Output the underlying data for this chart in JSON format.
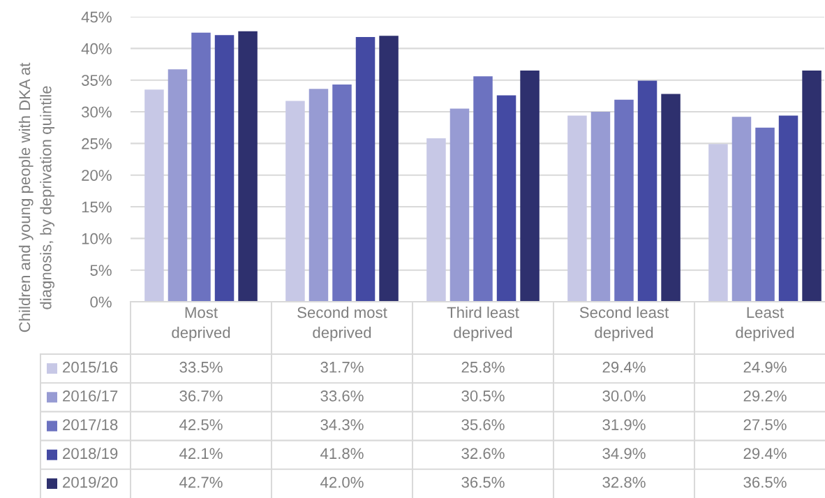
{
  "chart_data": {
    "type": "bar",
    "ylabel": "Children and young people with DKA at\ndiagnosis, by deprivation quintile",
    "categories": [
      "Most\ndeprived",
      "Second most\ndeprived",
      "Third least\ndeprived",
      "Second least\ndeprived",
      "Least\ndeprived"
    ],
    "series": [
      {
        "name": "2015/16",
        "color": "#c7c8e6",
        "values": [
          33.5,
          31.7,
          25.8,
          29.4,
          24.9
        ],
        "value_labels": [
          "33.5%",
          "31.7%",
          "25.8%",
          "29.4%",
          "24.9%"
        ]
      },
      {
        "name": "2016/17",
        "color": "#979bd3",
        "values": [
          36.7,
          33.6,
          30.5,
          30.0,
          29.2
        ],
        "value_labels": [
          "36.7%",
          "33.6%",
          "30.5%",
          "30.0%",
          "29.2%"
        ]
      },
      {
        "name": "2017/18",
        "color": "#6c72c0",
        "values": [
          42.5,
          34.3,
          35.6,
          31.9,
          27.5
        ],
        "value_labels": [
          "42.5%",
          "34.3%",
          "35.6%",
          "31.9%",
          "27.5%"
        ]
      },
      {
        "name": "2018/19",
        "color": "#444aa3",
        "values": [
          42.1,
          41.8,
          32.6,
          34.9,
          29.4
        ],
        "value_labels": [
          "42.1%",
          "41.8%",
          "32.6%",
          "34.9%",
          "29.4%"
        ]
      },
      {
        "name": "2019/20",
        "color": "#2e306e",
        "values": [
          42.7,
          42.0,
          36.5,
          32.8,
          36.5
        ],
        "value_labels": [
          "42.7%",
          "42.0%",
          "36.5%",
          "32.8%",
          "36.5%"
        ]
      }
    ],
    "ylim": [
      0,
      45
    ],
    "yticks": [
      {
        "value": 0,
        "label": "0%"
      },
      {
        "value": 5,
        "label": "5%"
      },
      {
        "value": 10,
        "label": "10%"
      },
      {
        "value": 15,
        "label": "15%"
      },
      {
        "value": 20,
        "label": "20%"
      },
      {
        "value": 25,
        "label": "25%"
      },
      {
        "value": 30,
        "label": "30%"
      },
      {
        "value": 35,
        "label": "35%"
      },
      {
        "value": 40,
        "label": "40%"
      },
      {
        "value": 45,
        "label": "45%"
      }
    ],
    "grid": "y",
    "legend": "bottom"
  }
}
